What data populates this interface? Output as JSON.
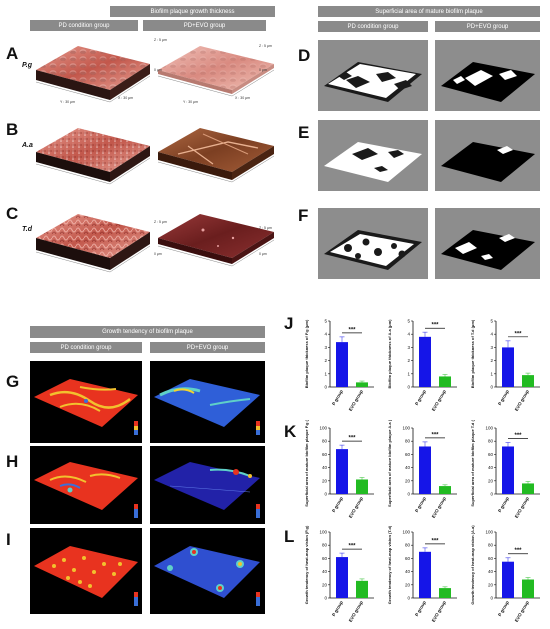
{
  "headers": {
    "afm_title": "Biofilm plaque growth thickness",
    "afm_pd": "PD condition group",
    "afm_pdevo": "PD+EVO group",
    "sa_title": "Superficial area of mature biofilm plaque",
    "sa_pd": "PD condition group",
    "sa_pdevo": "PD+EVO group",
    "gt_title": "Growth tendency of biofilm plaque",
    "gt_pd": "PD condition group",
    "gt_pdevo": "PD+EVO group"
  },
  "panel_letters": {
    "A": "A",
    "B": "B",
    "C": "C",
    "D": "D",
    "E": "E",
    "F": "F",
    "G": "G",
    "H": "H",
    "I": "I",
    "J": "J",
    "K": "K",
    "L": "L"
  },
  "row_labels": {
    "a": "P.g",
    "b": "A.a",
    "c": "T.d"
  },
  "afm_ticks": {
    "z_top": "Z : 5 μm",
    "z_zero": "0 μm",
    "x": "Y : 30 μm",
    "y": "X : 30 μm"
  },
  "significance": "***",
  "group_labels": [
    "P group",
    "EVO group"
  ],
  "colors": {
    "p_group": "#1515e8",
    "evo_group": "#22bb22",
    "header_bg": "#8a8a8a"
  },
  "chart_data": [
    {
      "type": "bar",
      "panel": "J",
      "ylabel": "Biofilm plaque thickness of P.g (μm)",
      "categories": [
        "P group",
        "EVO group"
      ],
      "values": [
        3.4,
        0.35
      ],
      "errors": [
        0.4,
        0.1
      ],
      "ylim": [
        0,
        5
      ],
      "yticks": [
        0,
        1,
        2,
        3,
        4,
        5
      ]
    },
    {
      "type": "bar",
      "panel": "J",
      "ylabel": "Biofilm plaque thickness of A.a (μm)",
      "categories": [
        "P group",
        "EVO group"
      ],
      "values": [
        3.8,
        0.8
      ],
      "errors": [
        0.35,
        0.15
      ],
      "ylim": [
        0,
        5
      ],
      "yticks": [
        0,
        1,
        2,
        3,
        4,
        5
      ]
    },
    {
      "type": "bar",
      "panel": "J",
      "ylabel": "Biofilm plaque thickness of T.d (μm)",
      "categories": [
        "P group",
        "EVO group"
      ],
      "values": [
        3.0,
        0.9
      ],
      "errors": [
        0.5,
        0.15
      ],
      "ylim": [
        0,
        5
      ],
      "yticks": [
        0,
        1,
        2,
        3,
        4,
        5
      ]
    },
    {
      "type": "bar",
      "panel": "K",
      "ylabel": "Superficial area of mature biofilm plaque P.g (%)",
      "categories": [
        "P group",
        "EVO group"
      ],
      "values": [
        68,
        22
      ],
      "errors": [
        6,
        3
      ],
      "ylim": [
        0,
        100
      ],
      "yticks": [
        0,
        20,
        40,
        60,
        80,
        100
      ]
    },
    {
      "type": "bar",
      "panel": "K",
      "ylabel": "Superficial area of mature biofilm plaque A.a (%)",
      "categories": [
        "P group",
        "EVO group"
      ],
      "values": [
        72,
        12
      ],
      "errors": [
        7,
        2
      ],
      "ylim": [
        0,
        100
      ],
      "yticks": [
        0,
        20,
        40,
        60,
        80,
        100
      ]
    },
    {
      "type": "bar",
      "panel": "K",
      "ylabel": "Superficial area of mature biofilm plaque T.d (%)",
      "categories": [
        "P group",
        "EVO group"
      ],
      "values": [
        72,
        16
      ],
      "errors": [
        6,
        3
      ],
      "ylim": [
        0,
        100
      ],
      "yticks": [
        0,
        20,
        40,
        60,
        80,
        100
      ]
    },
    {
      "type": "bar",
      "panel": "L",
      "ylabel": "Growth tendency of heat-map vision (P.g)",
      "categories": [
        "P group",
        "EVO group"
      ],
      "values": [
        62,
        26
      ],
      "errors": [
        6,
        3
      ],
      "ylim": [
        0,
        100
      ],
      "yticks": [
        0,
        20,
        40,
        60,
        80,
        100
      ]
    },
    {
      "type": "bar",
      "panel": "L",
      "ylabel": "Growth tendency of heat-map vision (T.d)",
      "categories": [
        "P group",
        "EVO group"
      ],
      "values": [
        70,
        15
      ],
      "errors": [
        6,
        2
      ],
      "ylim": [
        0,
        100
      ],
      "yticks": [
        0,
        20,
        40,
        60,
        80,
        100
      ]
    },
    {
      "type": "bar",
      "panel": "L",
      "ylabel": "Growth tendency of heat-map vision (A.a)",
      "categories": [
        "P group",
        "EVO group"
      ],
      "values": [
        55,
        28
      ],
      "errors": [
        6,
        3
      ],
      "ylim": [
        0,
        100
      ],
      "yticks": [
        0,
        20,
        40,
        60,
        80,
        100
      ]
    }
  ]
}
